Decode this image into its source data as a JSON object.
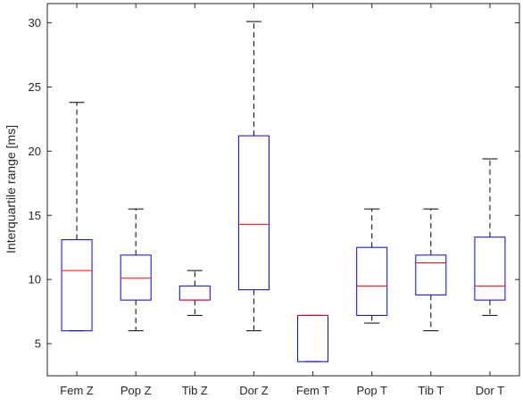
{
  "chart_data": {
    "type": "boxplot",
    "ylabel": "Interquartile range [ms]",
    "ylim": [
      2.5,
      31.5
    ],
    "yticks": [
      5,
      10,
      15,
      20,
      25,
      30
    ],
    "grid": false,
    "colors": {
      "box": "#0000ff",
      "median": "#ff0000",
      "whisker": "#000000",
      "axis": "#262626"
    },
    "categories": [
      "Fem Z",
      "Pop Z",
      "Tib Z",
      "Dor Z",
      "Fem T",
      "Pop T",
      "Tib T",
      "Dor T"
    ],
    "boxes": [
      {
        "whisker_low": 6.0,
        "q1": 6.0,
        "median": 10.7,
        "q3": 13.1,
        "whisker_high": 23.8
      },
      {
        "whisker_low": 6.0,
        "q1": 8.4,
        "median": 10.1,
        "q3": 11.9,
        "whisker_high": 15.5
      },
      {
        "whisker_low": 7.2,
        "q1": 8.4,
        "median": 8.4,
        "q3": 9.5,
        "whisker_high": 10.7
      },
      {
        "whisker_low": 6.0,
        "q1": 9.2,
        "median": 14.3,
        "q3": 21.2,
        "whisker_high": 30.1
      },
      {
        "whisker_low": 3.6,
        "q1": 3.6,
        "median": 7.2,
        "q3": 7.2,
        "whisker_high": 7.2
      },
      {
        "whisker_low": 6.6,
        "q1": 7.2,
        "median": 9.5,
        "q3": 12.5,
        "whisker_high": 15.5
      },
      {
        "whisker_low": 6.0,
        "q1": 8.8,
        "median": 11.3,
        "q3": 11.9,
        "whisker_high": 15.5
      },
      {
        "whisker_low": 7.2,
        "q1": 8.4,
        "median": 9.5,
        "q3": 13.3,
        "whisker_high": 19.4
      }
    ]
  }
}
